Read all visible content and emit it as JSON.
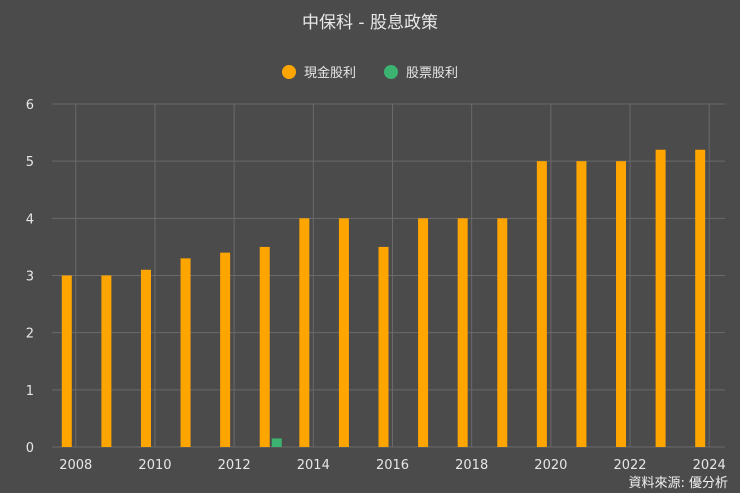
{
  "chart_data": {
    "type": "bar",
    "title": "中保科 - 股息政策",
    "xlabel": "",
    "ylabel": "",
    "ylim": [
      0,
      6
    ],
    "yticks": [
      0,
      1,
      2,
      3,
      4,
      5,
      6
    ],
    "categories": [
      "2008",
      "2009",
      "2010",
      "2011",
      "2012",
      "2013",
      "2014",
      "2015",
      "2016",
      "2017",
      "2018",
      "2019",
      "2020",
      "2021",
      "2022",
      "2023",
      "2024"
    ],
    "x_tick_labels": [
      "2008",
      "2010",
      "2012",
      "2014",
      "2016",
      "2018",
      "2020",
      "2022",
      "2024"
    ],
    "series": [
      {
        "name": "現金股利",
        "color": "#ffa500",
        "values": [
          3,
          3,
          3.1,
          3.3,
          3.4,
          3.5,
          4,
          4,
          3.5,
          4,
          4,
          4,
          5,
          5,
          5,
          5.2,
          5.2
        ]
      },
      {
        "name": "股票股利",
        "color": "#3cb371",
        "values": [
          0,
          0,
          0,
          0,
          0,
          0.15,
          0,
          0,
          0,
          0,
          0,
          0,
          0,
          0,
          0,
          0,
          0
        ]
      }
    ],
    "grid": true,
    "legend_position": "top-center",
    "background": "#4b4b4b",
    "gridline_color": "#6a6a6a"
  },
  "source_text": "資料來源: 優分析"
}
